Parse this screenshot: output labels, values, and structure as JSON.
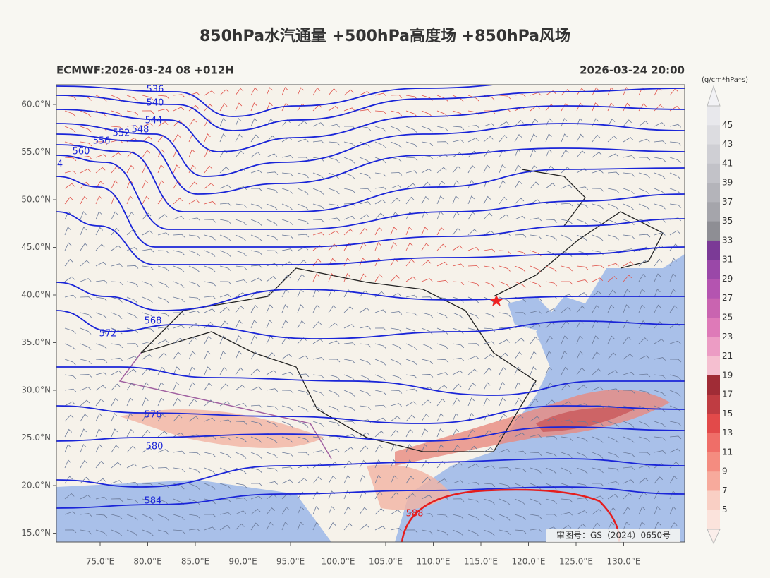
{
  "header": {
    "title": "850hPa水汽通量 +500hPa高度场 +850hPa风场",
    "model_run": "ECMWF:2026-03-24 08 +012H",
    "valid_time": "2026-03-24 20:00"
  },
  "map": {
    "lat_labels": [
      "60.0°N",
      "55.0°N",
      "50.0°N",
      "45.0°N",
      "40.0°N",
      "35.0°N",
      "30.0°N",
      "25.0°N",
      "20.0°N",
      "15.0°N"
    ],
    "lon_labels": [
      "75.0°E",
      "80.0°E",
      "85.0°E",
      "90.0°E",
      "95.0°E",
      "100.0°E",
      "105.0°E",
      "110.0°E",
      "115.0°E",
      "120.0°E",
      "125.0°E",
      "130.0°E"
    ],
    "contour_labels": [
      "536",
      "540",
      "544",
      "548",
      "552",
      "556",
      "560",
      "4",
      "568",
      "572",
      "576",
      "580",
      "584",
      "588"
    ],
    "credit": "审图号：GS（2024）0650号"
  },
  "colorbar": {
    "unit": "(g/cm*hPa*s)",
    "labels": [
      "45",
      "43",
      "41",
      "39",
      "37",
      "35",
      "33",
      "31",
      "29",
      "27",
      "25",
      "23",
      "21",
      "19",
      "17",
      "15",
      "13",
      "11",
      "9",
      "7",
      "5"
    ]
  }
}
